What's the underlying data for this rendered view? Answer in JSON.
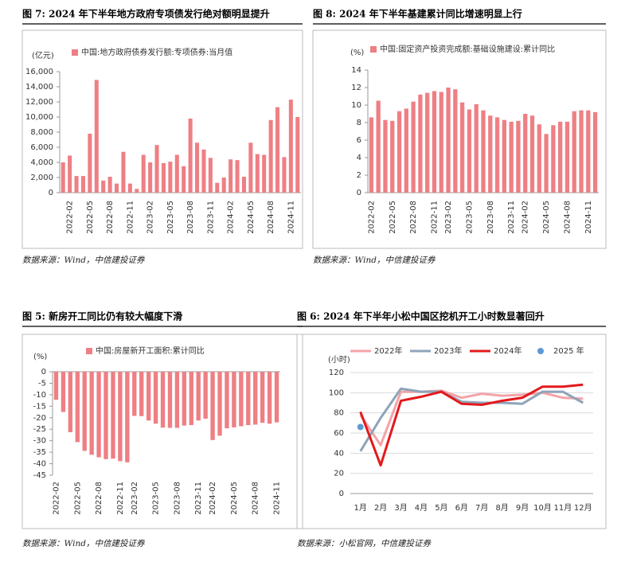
{
  "chart_data": [
    {
      "type": "bar",
      "figure_title": "图 7: 2024 年下半年地方政府专项债发行绝对额明显提升",
      "source": "数据来源：Wind，中信建投证券",
      "unit": "(亿元)",
      "color": "#ee7f84",
      "series": [
        {
          "name": "中国:地方政府债券发行额:专项债券:当月值",
          "color": "#ee7f84",
          "values": [
            4000,
            4900,
            2200,
            2200,
            7800,
            14900,
            1600,
            2100,
            1200,
            5400,
            1200,
            500,
            5000,
            4000,
            6300,
            3900,
            4100,
            5000,
            3500,
            9800,
            6600,
            5700,
            4600,
            1300,
            2000,
            4400,
            4300,
            2100,
            6600,
            5100,
            5000,
            9600,
            11300,
            4700,
            12300,
            10000
          ]
        }
      ],
      "categories": [
        null,
        "2022-02",
        null,
        null,
        "2022-05",
        null,
        null,
        "2022-08",
        null,
        null,
        "2022-11",
        null,
        null,
        "2023-02",
        null,
        null,
        "2023-05",
        null,
        null,
        "2023-08",
        null,
        null,
        "2023-11",
        null,
        null,
        "2024-02",
        null,
        null,
        "2024-05",
        null,
        null,
        "2024-08",
        null,
        null,
        "2024-11",
        null
      ],
      "ylim": [
        0,
        16000
      ],
      "yticks": [
        0,
        {
          "value": 2000,
          "label": "2,000"
        },
        {
          "value": 4000,
          "label": "4,000"
        },
        {
          "value": 6000,
          "label": "6,000"
        },
        {
          "value": 8000,
          "label": "8,000"
        },
        {
          "value": 10000,
          "label": "10,000"
        },
        {
          "value": 12000,
          "label": "12,000"
        },
        {
          "value": 14000,
          "label": "14,000"
        },
        {
          "value": 16000,
          "label": "16,000"
        }
      ],
      "grid": false
    },
    {
      "type": "bar",
      "figure_title": "图 8: 2024  年下半年基建累计同比增速明显上行",
      "source": "数据来源：Wind，中信建投证券",
      "unit": "(%)",
      "series": [
        {
          "name": "中国:固定资产投资完成额:基础设施建设:累计同比",
          "color": "#ee7f84",
          "values": [
            8.6,
            10.5,
            8.3,
            8.2,
            9.3,
            9.6,
            10.4,
            11.2,
            11.4,
            11.6,
            11.5,
            12.0,
            11.8,
            10.3,
            9.5,
            10.1,
            9.4,
            8.8,
            8.6,
            8.3,
            8.1,
            8.2,
            9.0,
            8.8,
            7.8,
            6.7,
            7.7,
            8.1,
            8.1,
            9.3,
            9.4,
            9.4,
            9.2
          ]
        }
      ],
      "categories": [
        "2022-02",
        null,
        null,
        "2022-05",
        null,
        null,
        "2022-08",
        null,
        null,
        "2022-11",
        null,
        "2023-02",
        null,
        null,
        "2023-05",
        null,
        null,
        "2023-08",
        null,
        null,
        "2023-11",
        null,
        "2024-02",
        null,
        null,
        "2024-05",
        null,
        null,
        "2024-08",
        null,
        null,
        "2024-11",
        null
      ],
      "ylim": [
        0,
        14
      ],
      "yticks": [
        0,
        2,
        4,
        6,
        8,
        10,
        12,
        14
      ],
      "grid": false
    },
    {
      "type": "bar",
      "figure_title": "图 5: 新房开工同比仍有较大幅度下滑",
      "source": "数据来源：Wind，中信建投证券",
      "unit": "(%)",
      "series": [
        {
          "name": "中国:房屋新开工面积:累计同比",
          "color": "#ee7f84",
          "values": [
            -12.2,
            -17.5,
            -26.3,
            -30.6,
            -34.4,
            -36.1,
            -37.2,
            -38.0,
            -37.8,
            -38.9,
            -39.4,
            -19.2,
            -19.3,
            -21.2,
            -22.6,
            -24.3,
            -24.4,
            -24.4,
            -23.4,
            -23.2,
            -21.2,
            -20.4,
            -29.7,
            -27.8,
            -24.6,
            -24.2,
            -23.7,
            -23.2,
            -23.0,
            -22.2,
            -22.6,
            -22.0
          ]
        }
      ],
      "categories": [
        "2022-02",
        null,
        null,
        "2022-05",
        null,
        null,
        "2022-08",
        null,
        null,
        "2022-11",
        null,
        "2023-02",
        null,
        null,
        "2023-05",
        null,
        null,
        "2023-08",
        null,
        null,
        "2023-11",
        null,
        "2024-02",
        null,
        null,
        "2024-05",
        null,
        null,
        "2024-08",
        null,
        null,
        "2024-11"
      ],
      "ylim": [
        -45,
        0
      ],
      "yticks": [
        0,
        -5,
        -10,
        -15,
        -20,
        -25,
        -30,
        -35,
        -40,
        -45
      ],
      "grid": false
    },
    {
      "type": "line",
      "figure_title": "图 6:    2024  年下半年小松中国区挖机开工小时数显著回升",
      "source": "数据来源：小松官网，中信建投证券",
      "unit": "(小时)",
      "categories": [
        "1月",
        "2月",
        "3月",
        "4月",
        "5月",
        "6月",
        "7月",
        "8月",
        "9月",
        "10月",
        "11月",
        "12月"
      ],
      "series": [
        {
          "name": "2022年",
          "color": "#f4a3a8",
          "values": [
            78,
            48,
            101,
            101,
            102,
            95,
            99,
            97,
            98,
            100,
            95,
            94
          ]
        },
        {
          "name": "2023年",
          "color": "#8ea4b8",
          "values": [
            42,
            75,
            104,
            101,
            101,
            91,
            90,
            90,
            89,
            101,
            101,
            90
          ]
        },
        {
          "name": "2024年",
          "color": "#e3191c",
          "values": [
            81,
            28,
            92,
            96,
            101,
            89,
            88,
            92,
            95,
            106,
            106,
            108
          ]
        },
        {
          "name": "2025 年",
          "color": "#5b9bd5",
          "marker": "circle",
          "values": [
            66,
            null,
            null,
            null,
            null,
            null,
            null,
            null,
            null,
            null,
            null,
            null
          ]
        }
      ],
      "ylim": [
        0,
        120
      ],
      "yticks": [
        0,
        20,
        40,
        60,
        80,
        100,
        120
      ],
      "grid": true
    }
  ]
}
